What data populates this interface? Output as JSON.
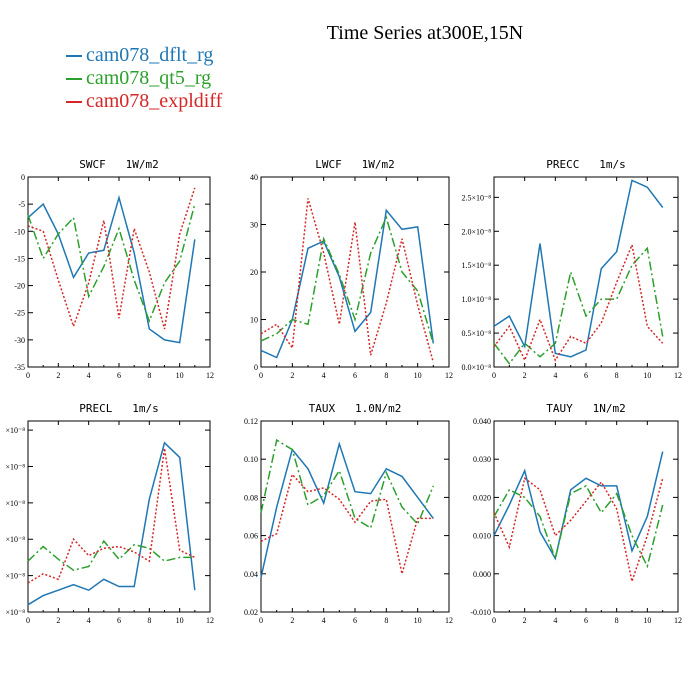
{
  "title": "Time Series at300E,15N",
  "legend": [
    {
      "label": "cam078_dflt_rg",
      "color": "#1f77b4"
    },
    {
      "label": "cam078_qt5_rg",
      "color": "#2ca02c"
    },
    {
      "label": "cam078_expldiff",
      "color": "#d62728"
    }
  ],
  "chart_data": [
    {
      "type": "line",
      "title": "SWCF   1W/m2",
      "x": [
        0,
        1,
        2,
        3,
        4,
        5,
        6,
        7,
        8,
        9,
        10,
        11
      ],
      "xlim": [
        0,
        12
      ],
      "xticks": [
        "0",
        "2",
        "4",
        "6",
        "8",
        "10",
        "12"
      ],
      "ylim": [
        -35,
        0
      ],
      "yticks": [
        "0",
        "-5",
        "-10",
        "-15",
        "-20",
        "-25",
        "-30",
        "-35"
      ],
      "series": [
        {
          "name": "cam078_dflt_rg",
          "values": [
            -7.5,
            -5,
            -10.5,
            -18.5,
            -14,
            -13.5,
            -3.8,
            -14,
            -28,
            -30,
            -30.5,
            -11.5
          ]
        },
        {
          "name": "cam078_qt5_rg",
          "values": [
            -7,
            -15,
            -10.5,
            -7.5,
            -22,
            -16.5,
            -9.5,
            -19,
            -26.5,
            -19.5,
            -15.5,
            -5
          ]
        },
        {
          "name": "cam078_expldiff",
          "values": [
            -9,
            -10,
            -19,
            -27.5,
            -19.5,
            -8,
            -26,
            -9.5,
            -17.5,
            -28,
            -10.5,
            -2
          ]
        }
      ]
    },
    {
      "type": "line",
      "title": "LWCF   1W/m2",
      "x": [
        0,
        1,
        2,
        3,
        4,
        5,
        6,
        7,
        8,
        9,
        10,
        11
      ],
      "xlim": [
        0,
        12
      ],
      "xticks": [
        "0",
        "2",
        "4",
        "6",
        "8",
        "10",
        "12"
      ],
      "ylim": [
        0,
        40
      ],
      "yticks": [
        "40",
        "30",
        "20",
        "10",
        "0"
      ],
      "series": [
        {
          "name": "cam078_dflt_rg",
          "values": [
            3.5,
            2,
            10,
            25,
            26.5,
            19,
            7.5,
            11.5,
            33,
            29,
            29.5,
            5
          ]
        },
        {
          "name": "cam078_qt5_rg",
          "values": [
            5.5,
            7,
            10,
            9,
            27,
            19.5,
            10,
            24,
            31.5,
            20,
            16,
            5
          ]
        },
        {
          "name": "cam078_expldiff",
          "values": [
            7,
            9,
            4,
            35.5,
            24,
            9,
            30.5,
            2.5,
            13.5,
            27,
            13,
            1
          ]
        }
      ]
    },
    {
      "type": "line",
      "title": "PRECC   1m/s",
      "x": [
        0,
        1,
        2,
        3,
        4,
        5,
        6,
        7,
        8,
        9,
        10,
        11
      ],
      "xlim": [
        0,
        12
      ],
      "xticks": [
        "0",
        "2",
        "4",
        "6",
        "8",
        "10",
        "12"
      ],
      "ylim": [
        0.0,
        2.8
      ],
      "yticks": [
        "2.5×10⁻⁸",
        "2.0×10⁻⁸",
        "1.5×10⁻⁸",
        "1.0×10⁻⁸",
        "0.5×10⁻⁸",
        "0.0×10⁻⁸"
      ],
      "ytick_values": [
        2.5,
        2.0,
        1.5,
        1.0,
        0.5,
        0.0
      ],
      "series": [
        {
          "name": "cam078_dflt_rg",
          "values": [
            0.6,
            0.75,
            0.3,
            1.82,
            0.2,
            0.15,
            0.25,
            1.45,
            1.7,
            2.75,
            2.65,
            2.35
          ]
        },
        {
          "name": "cam078_qt5_rg",
          "values": [
            0.35,
            0.05,
            0.35,
            0.15,
            0.35,
            1.4,
            0.75,
            1.0,
            1.0,
            1.5,
            1.75,
            0.45
          ]
        },
        {
          "name": "cam078_expldiff",
          "values": [
            0.3,
            0.6,
            0.1,
            0.7,
            0.1,
            0.45,
            0.35,
            0.65,
            1.25,
            1.8,
            0.6,
            0.35
          ]
        }
      ]
    },
    {
      "type": "line",
      "title": "PRECL   1m/s",
      "x": [
        0,
        1,
        2,
        3,
        4,
        5,
        6,
        7,
        8,
        9,
        10,
        11
      ],
      "xlim": [
        0,
        12
      ],
      "xticks": [
        "0",
        "2",
        "4",
        "6",
        "8",
        "10",
        "12"
      ],
      "ylim": [
        0.0,
        1.05
      ],
      "yticks": [
        "×10⁻⁸",
        "×10⁻⁸",
        "×10⁻⁸",
        "×10⁻⁸",
        "×10⁻⁸",
        "×10⁻⁸"
      ],
      "ytick_values": [
        1.0,
        0.8,
        0.6,
        0.4,
        0.2,
        0.0
      ],
      "series": [
        {
          "name": "cam078_dflt_rg",
          "values": [
            0.04,
            0.09,
            0.12,
            0.15,
            0.12,
            0.18,
            0.14,
            0.14,
            0.62,
            0.93,
            0.85,
            0.12
          ]
        },
        {
          "name": "cam078_qt5_rg",
          "values": [
            0.28,
            0.36,
            0.29,
            0.23,
            0.25,
            0.39,
            0.29,
            0.37,
            0.35,
            0.28,
            0.3,
            0.3
          ]
        },
        {
          "name": "cam078_expldiff",
          "values": [
            0.16,
            0.21,
            0.18,
            0.4,
            0.31,
            0.35,
            0.36,
            0.33,
            0.28,
            0.9,
            0.34,
            0.3
          ]
        }
      ]
    },
    {
      "type": "line",
      "title": "TAUX   1.0N/m2",
      "x": [
        0,
        1,
        2,
        3,
        4,
        5,
        6,
        7,
        8,
        9,
        10,
        11
      ],
      "xlim": [
        0,
        12
      ],
      "xticks": [
        "0",
        "2",
        "4",
        "6",
        "8",
        "10",
        "12"
      ],
      "ylim": [
        0.02,
        0.12
      ],
      "yticks": [
        "0.12",
        "0.10",
        "0.08",
        "0.06",
        "0.04",
        "0.02"
      ],
      "ytick_values": [
        0.12,
        0.1,
        0.08,
        0.06,
        0.04,
        0.02
      ],
      "series": [
        {
          "name": "cam078_dflt_rg",
          "values": [
            0.038,
            0.075,
            0.105,
            0.095,
            0.077,
            0.108,
            0.083,
            0.082,
            0.095,
            0.091,
            0.08,
            0.069
          ]
        },
        {
          "name": "cam078_qt5_rg",
          "values": [
            0.072,
            0.11,
            0.105,
            0.076,
            0.081,
            0.094,
            0.069,
            0.064,
            0.093,
            0.075,
            0.066,
            0.086
          ]
        },
        {
          "name": "cam078_expldiff",
          "values": [
            0.057,
            0.061,
            0.092,
            0.083,
            0.085,
            0.079,
            0.067,
            0.078,
            0.079,
            0.04,
            0.069,
            0.069
          ]
        }
      ]
    },
    {
      "type": "line",
      "title": "TAUY   1N/m2",
      "x": [
        0,
        1,
        2,
        3,
        4,
        5,
        6,
        7,
        8,
        9,
        10,
        11
      ],
      "xlim": [
        0,
        12
      ],
      "xticks": [
        "0",
        "2",
        "4",
        "6",
        "8",
        "10",
        "12"
      ],
      "ylim": [
        -0.01,
        0.04
      ],
      "yticks": [
        "0.040",
        "0.030",
        "0.020",
        "0.010",
        "0.000",
        "-0.010"
      ],
      "ytick_values": [
        0.04,
        0.03,
        0.02,
        0.01,
        0.0,
        -0.01
      ],
      "series": [
        {
          "name": "cam078_dflt_rg",
          "values": [
            0.01,
            0.018,
            0.027,
            0.011,
            0.004,
            0.022,
            0.025,
            0.023,
            0.023,
            0.006,
            0.015,
            0.032
          ]
        },
        {
          "name": "cam078_qt5_rg",
          "values": [
            0.015,
            0.022,
            0.02,
            0.015,
            0.004,
            0.021,
            0.023,
            0.016,
            0.021,
            0.01,
            0.002,
            0.018
          ]
        },
        {
          "name": "cam078_expldiff",
          "values": [
            0.016,
            0.007,
            0.025,
            0.022,
            0.01,
            0.014,
            0.019,
            0.024,
            0.017,
            -0.002,
            0.01,
            0.025
          ]
        }
      ]
    }
  ]
}
